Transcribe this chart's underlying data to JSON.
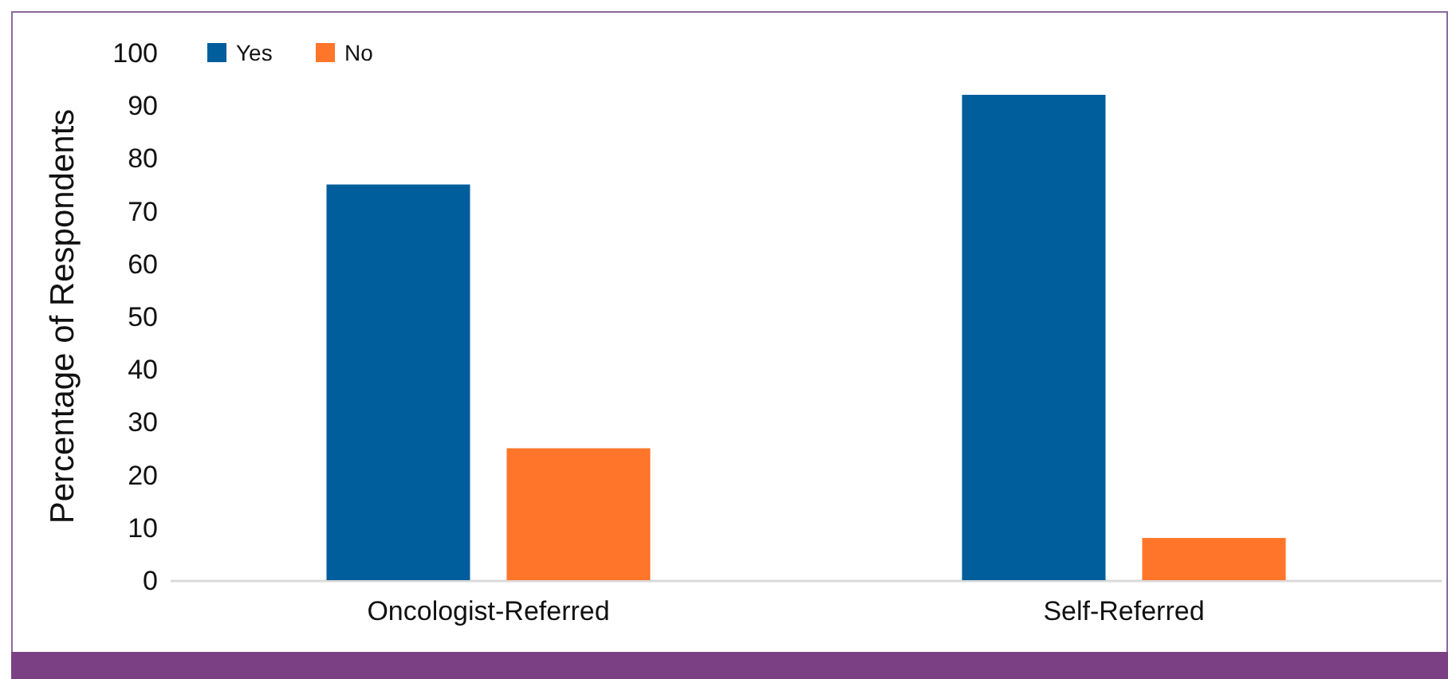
{
  "chart_data": {
    "type": "bar",
    "ylabel": "Percentage of Respondents",
    "categories": [
      "Oncologist-Referred",
      "Self-Referred"
    ],
    "series": [
      {
        "name": "Yes",
        "color": "#005e9c",
        "values": [
          75,
          92
        ]
      },
      {
        "name": "No",
        "color": "#ff7529",
        "values": [
          25,
          8
        ]
      }
    ],
    "ylim": [
      0,
      100
    ],
    "yticks": [
      0,
      10,
      20,
      30,
      40,
      50,
      60,
      70,
      80,
      90,
      100
    ],
    "grid": false,
    "legend": "top left"
  }
}
